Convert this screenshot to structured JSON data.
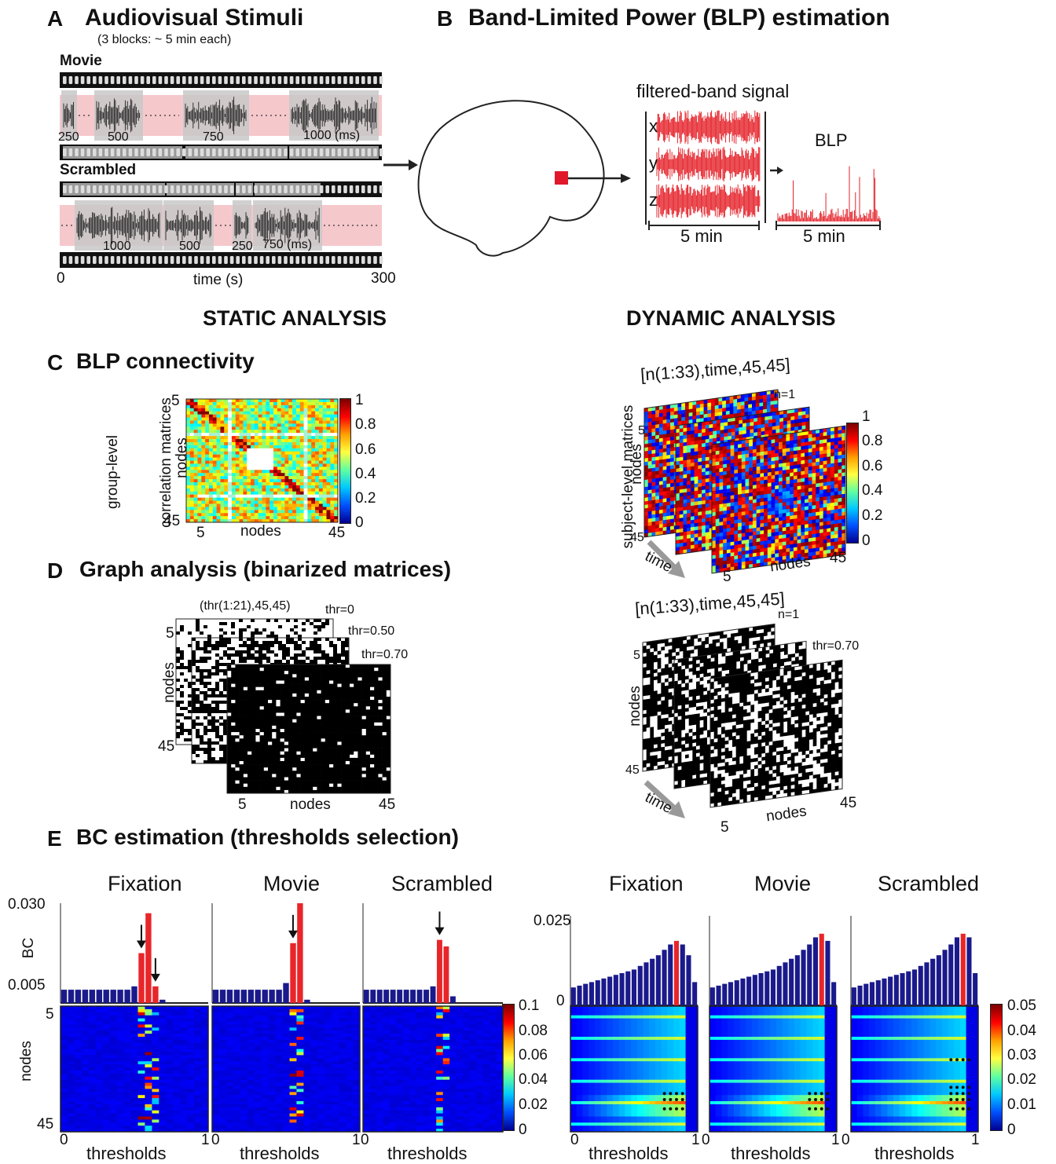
{
  "panel_a": {
    "letter": "A",
    "title": "Audiovisual Stimuli",
    "subtitle": "(3 blocks: ~ 5 min each)",
    "movie_label": "Movie",
    "scrambled_label": "Scrambled",
    "movie_clips": [
      "250",
      "500",
      "750",
      "1000 (ms)"
    ],
    "scrambled_clips": [
      "1000",
      "500",
      "250",
      "750 (ms)"
    ],
    "time_start": "0",
    "time_end": "300",
    "time_label": "time (s)"
  },
  "panel_b": {
    "letter": "B",
    "title": "Band-Limited Power (BLP) estimation",
    "filtered_label": "filtered-band signal",
    "channels": [
      "x",
      "y",
      "z"
    ],
    "signal_duration": "5 min",
    "blp_label": "BLP",
    "blp_duration": "5 min"
  },
  "headings": {
    "static": "STATIC ANALYSIS",
    "dynamic": "DYNAMIC ANALYSIS"
  },
  "panel_c": {
    "letter": "C",
    "title": "BLP connectivity",
    "ylabel_line1": "group-level",
    "ylabel_line2": "correlation matrices",
    "nodes_label": "nodes",
    "tick_start": "5",
    "tick_end": "45",
    "colorbar_ticks": [
      "1",
      "0.8",
      "0.6",
      "0.4",
      "0.2",
      "0"
    ]
  },
  "dynamic_corr": {
    "index_label": "[n(1:33),time,45,45]",
    "n_label": "n=1",
    "ylabel": "subject-level matrices",
    "nodes_label": "nodes",
    "time_label": "time",
    "tick_start": "5",
    "tick_end": "45",
    "colorbar_ticks": [
      "1",
      "0.8",
      "0.6",
      "0.4",
      "0.2",
      "0"
    ]
  },
  "panel_d": {
    "letter": "D",
    "title": "Graph analysis (binarized matrices)",
    "index_label": "(thr(1:21),45,45)",
    "thresholds": [
      "thr=0",
      "thr=0.50",
      "thr=0.70"
    ],
    "nodes_label": "nodes",
    "tick_start": "5",
    "tick_end": "45"
  },
  "dynamic_bin": {
    "index_label": "[n(1:33),time,45,45]",
    "n_label": "n=1",
    "threshold": "thr=0.70",
    "nodes_label": "nodes",
    "time_label": "time",
    "tick_start": "5",
    "tick_end": "45"
  },
  "panel_e": {
    "letter": "E",
    "title": "BC estimation (thresholds selection)",
    "conditions": [
      "Fixation",
      "Movie",
      "Scrambled"
    ],
    "static_yticks": [
      "0.030",
      "0.005"
    ],
    "static_ylabel": "BC",
    "dynamic_ytick_top": "0.025",
    "dynamic_ytick_bottom": "0",
    "nodes_label": "nodes",
    "node_ticks": [
      "5",
      "45"
    ],
    "xlabel": "thresholds",
    "xticks": [
      "0",
      "1"
    ],
    "static_colorbar_ticks": [
      "0.1",
      "0.08",
      "0.06",
      "0.04",
      "0.02",
      "0"
    ],
    "dynamic_colorbar_ticks": [
      "0.05",
      "0.04",
      "0.03",
      "0.02",
      "0.01",
      "0"
    ],
    "colors": {
      "bar": "#1a1a8c",
      "highlight": "#e8262a",
      "heat_bg": "#0a2cb8"
    }
  },
  "chart_data": [
    {
      "type": "bar",
      "condition": "Fixation",
      "x": [
        0,
        0.05,
        0.1,
        0.15,
        0.2,
        0.25,
        0.3,
        0.35,
        0.4,
        0.45,
        0.5,
        0.55,
        0.6,
        0.65,
        0.7,
        0.75,
        0.8,
        0.85,
        0.9,
        0.95,
        1.0
      ],
      "values": [
        0.004,
        0.004,
        0.004,
        0.004,
        0.004,
        0.004,
        0.004,
        0.004,
        0.004,
        0.004,
        0.005,
        0.015,
        0.027,
        0.005,
        0.001,
        0,
        0,
        0,
        0,
        0,
        0
      ],
      "highlight": [
        11,
        12,
        13
      ],
      "ylim": [
        0,
        0.03
      ]
    },
    {
      "type": "bar",
      "condition": "Movie",
      "x": [
        0,
        0.05,
        0.1,
        0.15,
        0.2,
        0.25,
        0.3,
        0.35,
        0.4,
        0.45,
        0.5,
        0.55,
        0.6,
        0.65,
        0.7,
        0.75,
        0.8,
        0.85,
        0.9,
        0.95,
        1.0
      ],
      "values": [
        0.004,
        0.004,
        0.004,
        0.004,
        0.004,
        0.004,
        0.004,
        0.004,
        0.004,
        0.004,
        0.006,
        0.018,
        0.03,
        0.001,
        0,
        0,
        0,
        0,
        0,
        0,
        0
      ],
      "highlight": [
        11,
        12
      ],
      "ylim": [
        0,
        0.03
      ]
    },
    {
      "type": "bar",
      "condition": "Scrambled",
      "x": [
        0,
        0.05,
        0.1,
        0.15,
        0.2,
        0.25,
        0.3,
        0.35,
        0.4,
        0.45,
        0.5,
        0.55,
        0.6,
        0.65,
        0.7,
        0.75,
        0.8,
        0.85,
        0.9,
        0.95,
        1.0
      ],
      "values": [
        0.004,
        0.004,
        0.004,
        0.004,
        0.004,
        0.004,
        0.004,
        0.004,
        0.004,
        0.004,
        0.005,
        0.019,
        0.017,
        0.002,
        0,
        0,
        0,
        0,
        0,
        0,
        0
      ],
      "highlight": [
        11,
        12
      ],
      "ylim": [
        0,
        0.03
      ]
    },
    {
      "type": "bar",
      "condition": "Fixation",
      "x": [
        0,
        0.05,
        0.1,
        0.15,
        0.2,
        0.25,
        0.3,
        0.35,
        0.4,
        0.45,
        0.5,
        0.55,
        0.6,
        0.65,
        0.7,
        0.75,
        0.8,
        0.85,
        0.9,
        0.95,
        1.0
      ],
      "values": [
        0.005,
        0.0055,
        0.006,
        0.0065,
        0.007,
        0.0075,
        0.008,
        0.0085,
        0.009,
        0.0095,
        0.01,
        0.011,
        0.012,
        0.013,
        0.014,
        0.0155,
        0.017,
        0.018,
        0.017,
        0.014,
        0.0065
      ],
      "highlight": [
        17
      ],
      "ylim": [
        0,
        0.025
      ]
    },
    {
      "type": "bar",
      "condition": "Movie",
      "x": [
        0,
        0.05,
        0.1,
        0.15,
        0.2,
        0.25,
        0.3,
        0.35,
        0.4,
        0.45,
        0.5,
        0.55,
        0.6,
        0.65,
        0.7,
        0.75,
        0.8,
        0.85,
        0.9,
        0.95,
        1.0
      ],
      "values": [
        0.005,
        0.0055,
        0.006,
        0.0065,
        0.007,
        0.0075,
        0.008,
        0.0085,
        0.009,
        0.0095,
        0.01,
        0.011,
        0.012,
        0.013,
        0.014,
        0.0155,
        0.017,
        0.019,
        0.02,
        0.018,
        0.0065
      ],
      "highlight": [
        18
      ],
      "ylim": [
        0,
        0.025
      ]
    },
    {
      "type": "bar",
      "condition": "Scrambled",
      "x": [
        0,
        0.05,
        0.1,
        0.15,
        0.2,
        0.25,
        0.3,
        0.35,
        0.4,
        0.45,
        0.5,
        0.55,
        0.6,
        0.65,
        0.7,
        0.75,
        0.8,
        0.85,
        0.9,
        0.95,
        1.0
      ],
      "values": [
        0.005,
        0.0055,
        0.006,
        0.0065,
        0.007,
        0.0075,
        0.008,
        0.0085,
        0.009,
        0.0095,
        0.01,
        0.011,
        0.012,
        0.013,
        0.014,
        0.0155,
        0.017,
        0.019,
        0.02,
        0.019,
        0.009
      ],
      "highlight": [
        18
      ],
      "ylim": [
        0,
        0.025
      ]
    }
  ]
}
